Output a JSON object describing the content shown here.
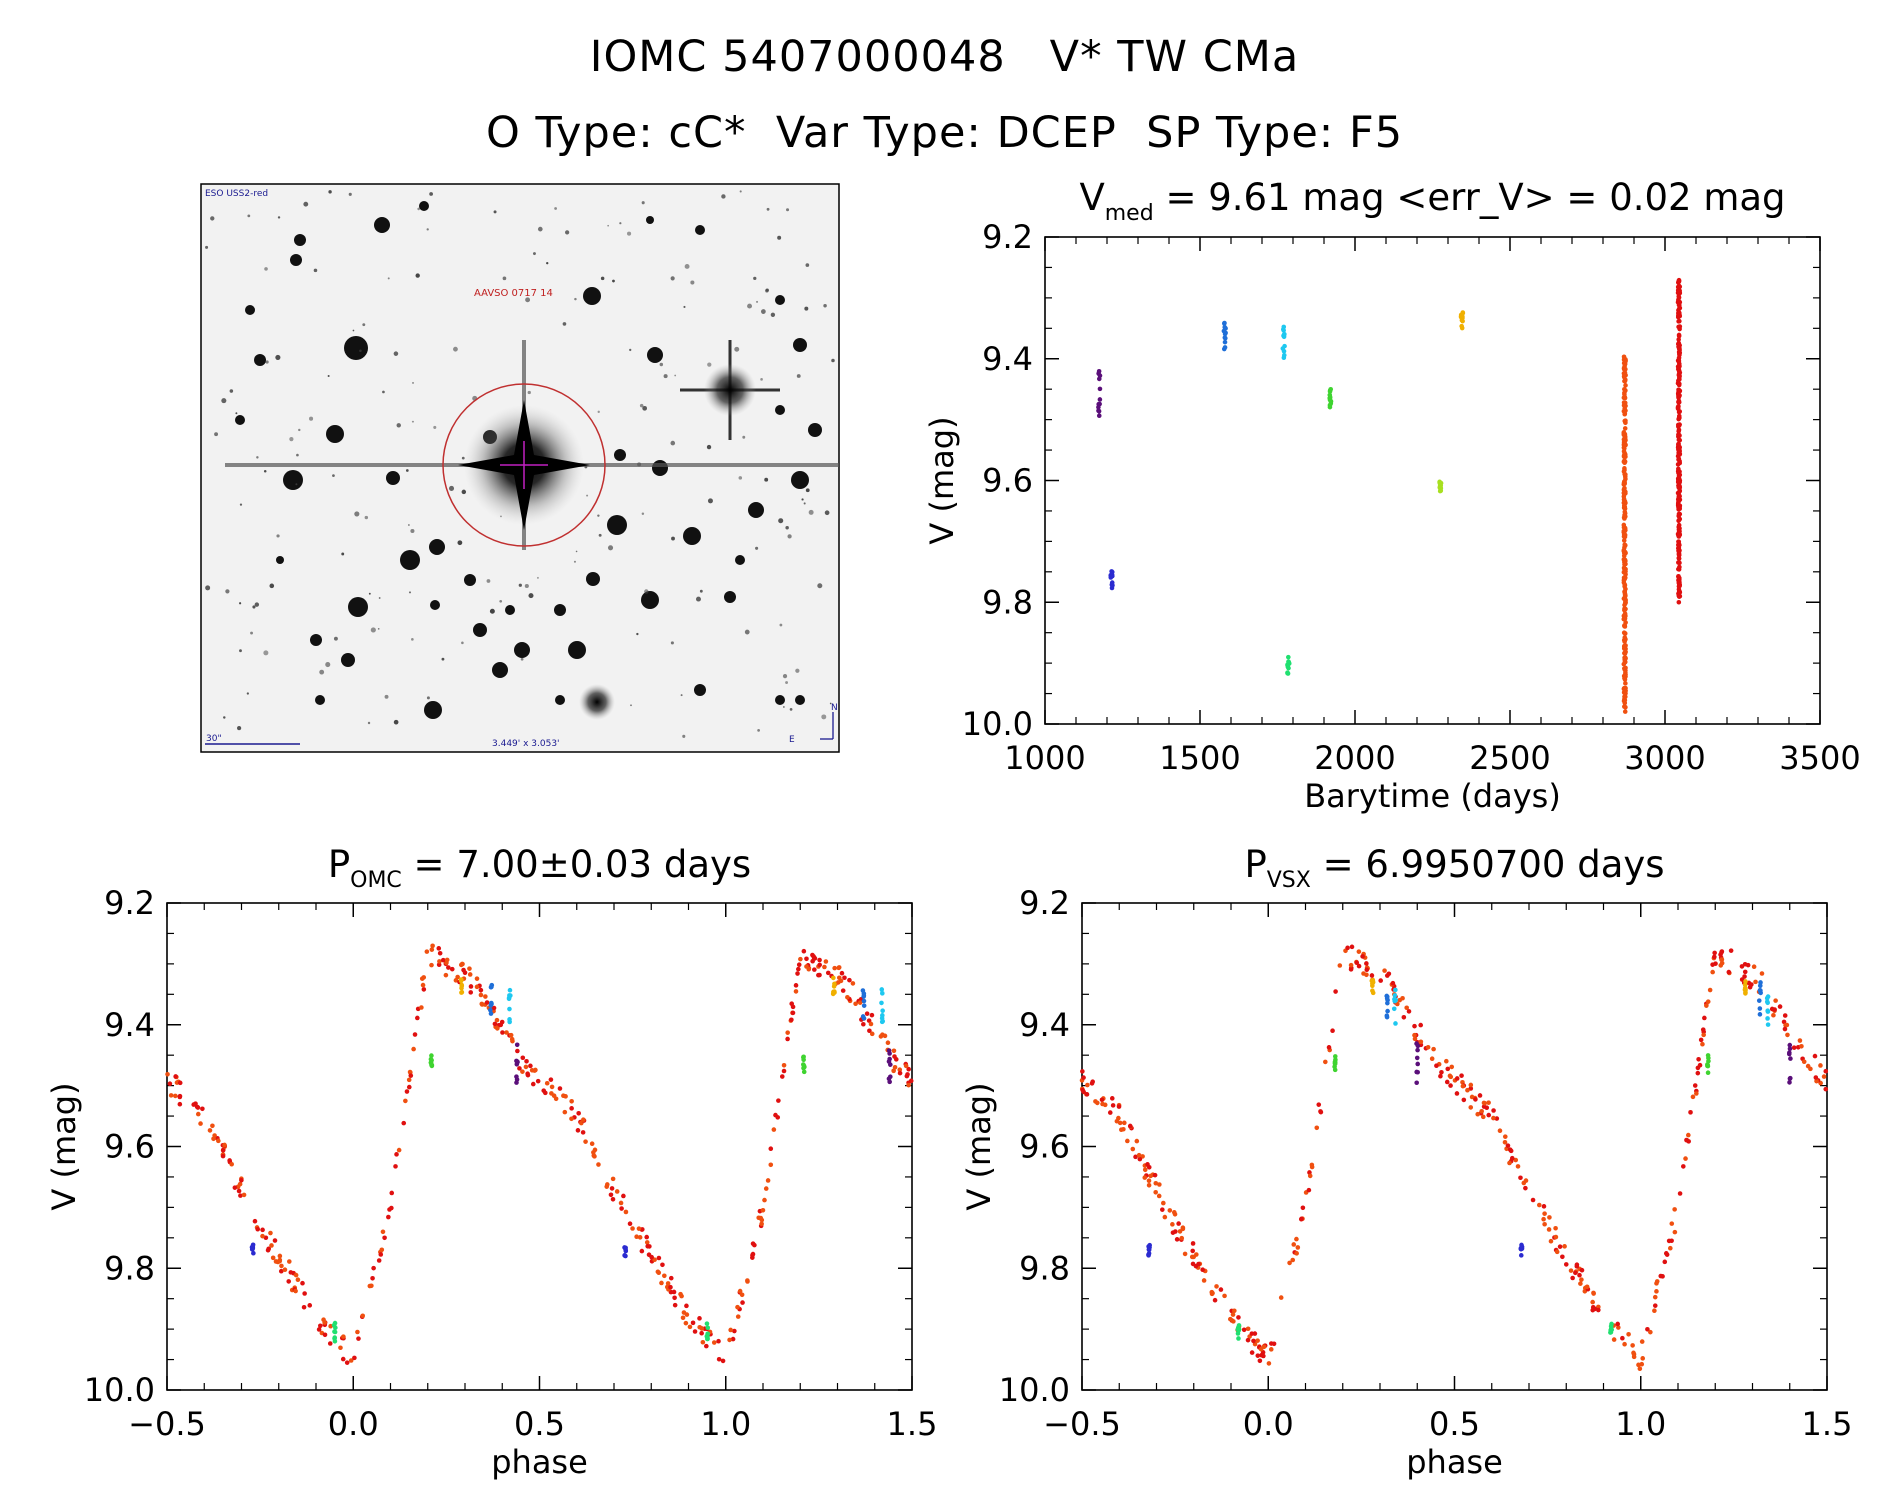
{
  "title_line1": "IOMC 5407000048   V* TW CMa",
  "title_line2": "O Type: cC*  Var Type: DCEP  SP Type: F5",
  "image_panel": {
    "survey_label": "ESO USS2-red",
    "catalog_label": "AAVSO 0717 14",
    "scale_label": "30\"",
    "fov_label": "3.449' x 3.053'",
    "north_label": "N",
    "east_label": "E"
  },
  "colors": {
    "dark_purple": "#5a0f7a",
    "blue": "#2b2bd0",
    "azure": "#1f6fd8",
    "cyan": "#1ec8f0",
    "green": "#3fd430",
    "spring_green": "#20e070",
    "yellow_green": "#a8e020",
    "orange": "#f0b000",
    "red_orange": "#f05010",
    "red": "#e01010"
  },
  "chart_data": [
    {
      "type": "scatter",
      "id": "lightcurve",
      "title_main": "V",
      "title_sub": "med",
      "title_rest": " = 9.61 mag <err_V> = 0.02 mag",
      "xlabel": "Barytime (days)",
      "ylabel": "V (mag)",
      "xlim": [
        1000,
        3500
      ],
      "ylim": [
        10.0,
        9.2
      ],
      "xticks": [
        "1000",
        "1500",
        "2000",
        "2500",
        "3000",
        "3500"
      ],
      "yticks": [
        "9.2",
        "9.4",
        "9.6",
        "9.8",
        "10.0"
      ],
      "groups": [
        {
          "x": 1175,
          "y_range": [
            9.42,
            9.5
          ],
          "color": "dark_purple"
        },
        {
          "x": 1215,
          "y_range": [
            9.74,
            9.78
          ],
          "color": "blue"
        },
        {
          "x": 1580,
          "y_range": [
            9.33,
            9.39
          ],
          "color": "azure"
        },
        {
          "x": 1770,
          "y_range": [
            9.34,
            9.4
          ],
          "color": "cyan"
        },
        {
          "x": 1785,
          "y_range": [
            9.89,
            9.92
          ],
          "color": "spring_green"
        },
        {
          "x": 1920,
          "y_range": [
            9.45,
            9.48
          ],
          "color": "green"
        },
        {
          "x": 2275,
          "y_range": [
            9.6,
            9.62
          ],
          "color": "yellow_green"
        },
        {
          "x": 2345,
          "y_range": [
            9.32,
            9.35
          ],
          "color": "orange"
        },
        {
          "x": 2870,
          "y_range": [
            9.39,
            9.98
          ],
          "color": "red_orange"
        },
        {
          "x": 3045,
          "y_range": [
            9.27,
            9.8
          ],
          "color": "red"
        }
      ]
    },
    {
      "type": "scatter",
      "id": "phase_omc",
      "title_main": "P",
      "title_sub": "OMC",
      "title_rest": " = 7.00±0.03 days",
      "xlabel": "phase",
      "ylabel": "V (mag)",
      "xlim": [
        -0.5,
        1.5
      ],
      "ylim": [
        10.0,
        9.2
      ],
      "xticks": [
        "−0.5",
        "0.0",
        "0.5",
        "1.0",
        "1.5"
      ],
      "yticks": [
        "9.2",
        "9.4",
        "9.6",
        "9.8",
        "10.0"
      ],
      "curve": {
        "phase": [
          0.0,
          0.1,
          0.2,
          0.32,
          0.45,
          0.6,
          0.75,
          0.9,
          1.0
        ],
        "mag": [
          9.95,
          9.7,
          9.28,
          9.33,
          9.46,
          9.55,
          9.73,
          9.88,
          9.95
        ]
      },
      "extra_groups": [
        {
          "phase": -0.27,
          "y_range": [
            9.76,
            9.78
          ],
          "color": "blue"
        },
        {
          "phase": -0.05,
          "y_range": [
            9.89,
            9.92
          ],
          "color": "spring_green"
        },
        {
          "phase": 0.21,
          "y_range": [
            9.45,
            9.48
          ],
          "color": "green"
        },
        {
          "phase": 0.29,
          "y_range": [
            9.32,
            9.35
          ],
          "color": "orange"
        },
        {
          "phase": 0.37,
          "y_range": [
            9.33,
            9.39
          ],
          "color": "azure"
        },
        {
          "phase": 0.42,
          "y_range": [
            9.34,
            9.4
          ],
          "color": "cyan"
        },
        {
          "phase": 0.44,
          "y_range": [
            9.42,
            9.5
          ],
          "color": "dark_purple"
        }
      ]
    },
    {
      "type": "scatter",
      "id": "phase_vsx",
      "title_main": "P",
      "title_sub": "VSX",
      "title_rest": " = 6.9950700 days",
      "xlabel": "phase",
      "ylabel": "V (mag)",
      "xlim": [
        -0.5,
        1.5
      ],
      "ylim": [
        10.0,
        9.2
      ],
      "xticks": [
        "−0.5",
        "0.0",
        "0.5",
        "1.0",
        "1.5"
      ],
      "yticks": [
        "9.2",
        "9.4",
        "9.6",
        "9.8",
        "10.0"
      ],
      "curve": {
        "phase": [
          0.0,
          0.1,
          0.2,
          0.32,
          0.45,
          0.6,
          0.75,
          0.9,
          1.0
        ],
        "mag": [
          9.95,
          9.7,
          9.28,
          9.33,
          9.46,
          9.55,
          9.73,
          9.88,
          9.95
        ]
      },
      "extra_groups": [
        {
          "phase": -0.32,
          "y_range": [
            9.76,
            9.78
          ],
          "color": "blue"
        },
        {
          "phase": -0.08,
          "y_range": [
            9.89,
            9.92
          ],
          "color": "spring_green"
        },
        {
          "phase": 0.18,
          "y_range": [
            9.45,
            9.48
          ],
          "color": "green"
        },
        {
          "phase": 0.28,
          "y_range": [
            9.32,
            9.35
          ],
          "color": "orange"
        },
        {
          "phase": 0.32,
          "y_range": [
            9.33,
            9.39
          ],
          "color": "azure"
        },
        {
          "phase": 0.34,
          "y_range": [
            9.34,
            9.4
          ],
          "color": "cyan"
        },
        {
          "phase": 0.4,
          "y_range": [
            9.42,
            9.5
          ],
          "color": "dark_purple"
        }
      ]
    }
  ]
}
